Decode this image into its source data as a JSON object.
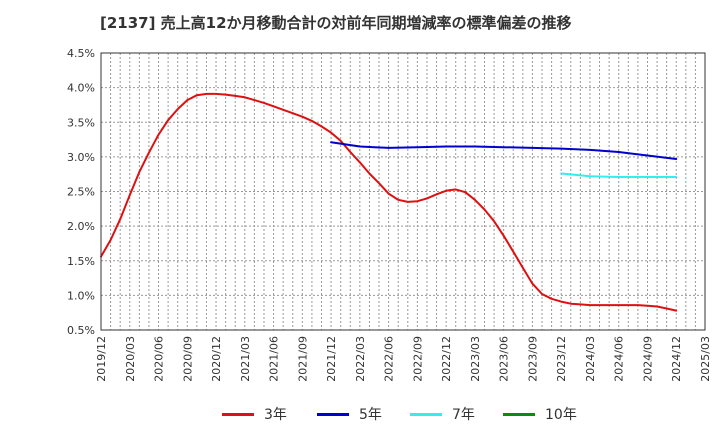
{
  "chart_data": {
    "type": "line",
    "title": "[2137]  売上高12か月移動合計の対前年同期増減率の標準偏差の推移",
    "x_ticks": [
      "2019/12",
      "2020/03",
      "2020/06",
      "2020/09",
      "2020/12",
      "2021/03",
      "2021/06",
      "2021/09",
      "2021/12",
      "2022/03",
      "2022/06",
      "2022/09",
      "2022/12",
      "2023/03",
      "2023/06",
      "2023/09",
      "2023/12",
      "2024/03",
      "2024/06",
      "2024/09",
      "2024/12",
      "2025/03"
    ],
    "y_ticks": [
      "4.5%",
      "4.0%",
      "3.5%",
      "3.0%",
      "2.5%",
      "2.0%",
      "1.5%",
      "1.0%",
      "0.5%"
    ],
    "ylim": [
      0.5,
      4.5
    ],
    "grid": true,
    "legend_position": "bottom",
    "series": [
      {
        "name": "3年",
        "color": "#dd1111",
        "x": [
          "2019/12",
          "2020/01",
          "2020/02",
          "2020/03",
          "2020/04",
          "2020/05",
          "2020/06",
          "2020/07",
          "2020/08",
          "2020/09",
          "2020/10",
          "2020/11",
          "2020/12",
          "2021/01",
          "2021/02",
          "2021/03",
          "2021/04",
          "2021/05",
          "2021/06",
          "2021/07",
          "2021/08",
          "2021/09",
          "2021/10",
          "2021/11",
          "2021/12",
          "2022/01",
          "2022/02",
          "2022/03",
          "2022/04",
          "2022/05",
          "2022/06",
          "2022/07",
          "2022/08",
          "2022/09",
          "2022/10",
          "2022/11",
          "2022/12",
          "2023/01",
          "2023/02",
          "2023/03",
          "2023/04",
          "2023/05",
          "2023/06",
          "2023/07",
          "2023/08",
          "2023/09",
          "2023/10",
          "2023/11",
          "2023/12",
          "2024/01",
          "2024/02",
          "2024/03",
          "2024/04",
          "2024/05",
          "2024/06",
          "2024/07",
          "2024/08",
          "2024/09",
          "2024/10",
          "2024/11",
          "2024/12"
        ],
        "values": [
          1.56,
          1.8,
          2.1,
          2.45,
          2.78,
          3.06,
          3.32,
          3.53,
          3.69,
          3.82,
          3.89,
          3.91,
          3.91,
          3.9,
          3.88,
          3.86,
          3.82,
          3.78,
          3.73,
          3.68,
          3.63,
          3.58,
          3.52,
          3.44,
          3.35,
          3.23,
          3.07,
          2.92,
          2.76,
          2.62,
          2.47,
          2.38,
          2.35,
          2.36,
          2.4,
          2.46,
          2.51,
          2.53,
          2.49,
          2.38,
          2.24,
          2.07,
          1.86,
          1.63,
          1.4,
          1.17,
          1.02,
          0.95,
          0.91,
          0.88,
          0.87,
          0.86,
          0.86,
          0.86,
          0.86,
          0.86,
          0.86,
          0.85,
          0.84,
          0.81,
          0.78
        ]
      },
      {
        "name": "5年",
        "color": "#0000cc",
        "x": [
          "2021/12",
          "2022/03",
          "2022/06",
          "2022/09",
          "2022/12",
          "2023/03",
          "2023/06",
          "2023/09",
          "2023/12",
          "2024/03",
          "2024/06",
          "2024/09",
          "2024/12"
        ],
        "values": [
          3.21,
          3.15,
          3.13,
          3.14,
          3.15,
          3.15,
          3.14,
          3.13,
          3.12,
          3.1,
          3.07,
          3.02,
          2.97
        ]
      },
      {
        "name": "7年",
        "color": "#33eeee",
        "x": [
          "2023/12",
          "2024/03",
          "2024/06",
          "2024/09",
          "2024/12"
        ],
        "values": [
          2.76,
          2.72,
          2.71,
          2.71,
          2.71
        ]
      },
      {
        "name": "10年",
        "color": "#118811",
        "x": [],
        "values": []
      }
    ]
  }
}
